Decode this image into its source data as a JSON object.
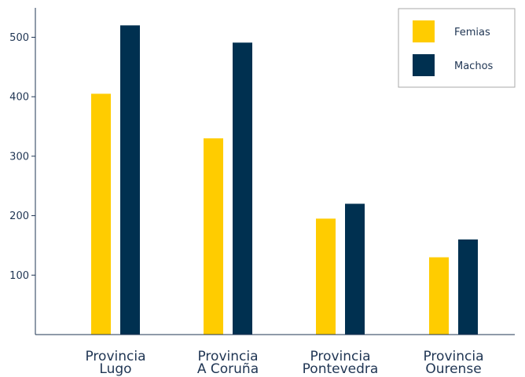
{
  "chart_data": {
    "type": "bar",
    "categories": [
      [
        "Provincia",
        "Lugo"
      ],
      [
        "Provincia",
        "A Coruña"
      ],
      [
        "Provincia",
        "Pontevedra"
      ],
      [
        "Provincia",
        "Ourense"
      ]
    ],
    "series": [
      {
        "name": "Femias",
        "color": "#FFCC00",
        "values": [
          405,
          330,
          195,
          130
        ]
      },
      {
        "name": "Machos",
        "color": "#003050",
        "values": [
          520,
          491,
          220,
          160
        ]
      }
    ],
    "yticks": [
      "100",
      "200",
      "300",
      "400",
      "500"
    ],
    "ylim": [
      0,
      550
    ],
    "xlabel": "",
    "ylabel": "",
    "title": "",
    "grid": false,
    "legend_position": "top-right"
  }
}
